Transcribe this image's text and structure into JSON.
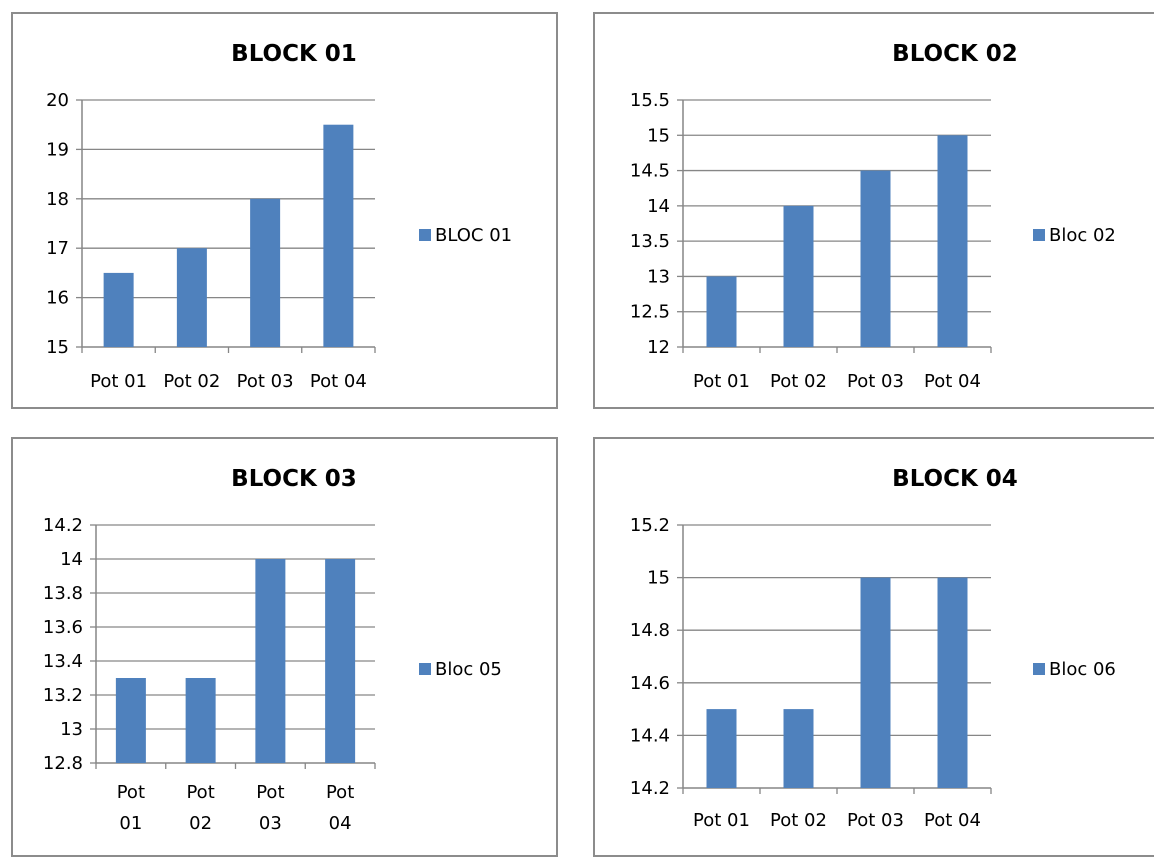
{
  "colors": {
    "bar": "#4f81bd",
    "grid": "#868686",
    "axis": "#868686",
    "border": "#8c8c8c"
  },
  "chart_data": [
    {
      "type": "bar",
      "title": "BLOCK 01",
      "categories": [
        "Pot 01",
        "Pot 02",
        "Pot 03",
        "Pot 04"
      ],
      "series": [
        {
          "name": "BLOC 01",
          "values": [
            16.5,
            17,
            18,
            19.5
          ]
        }
      ],
      "ylim": [
        15,
        20
      ],
      "yticks": [
        "15",
        "16",
        "17",
        "18",
        "19",
        "20"
      ],
      "grid": true,
      "legend": "right"
    },
    {
      "type": "bar",
      "title": "BLOCK 02",
      "categories": [
        "Pot 01",
        "Pot 02",
        "Pot 03",
        "Pot 04"
      ],
      "series": [
        {
          "name": "Bloc 02",
          "values": [
            13,
            14,
            14.5,
            15
          ]
        }
      ],
      "ylim": [
        12,
        15.5
      ],
      "yticks": [
        "12",
        "12.5",
        "13",
        "13.5",
        "14",
        "14.5",
        "15",
        "15.5"
      ],
      "grid": true,
      "legend": "right"
    },
    {
      "type": "bar",
      "title": "BLOCK 03",
      "categories": [
        "Pot 01",
        "Pot 02",
        "Pot 03",
        "Pot 04"
      ],
      "series": [
        {
          "name": "Bloc 05",
          "values": [
            13.3,
            13.3,
            14,
            14
          ]
        }
      ],
      "ylim": [
        12.8,
        14.2
      ],
      "yticks": [
        "12.8",
        "13",
        "13.2",
        "13.4",
        "13.6",
        "13.8",
        "14",
        "14.2"
      ],
      "grid": true,
      "legend": "right"
    },
    {
      "type": "bar",
      "title": "BLOCK 04",
      "categories": [
        "Pot 01",
        "Pot 02",
        "Pot 03",
        "Pot 04"
      ],
      "series": [
        {
          "name": "Bloc 06",
          "values": [
            14.5,
            14.5,
            15,
            15
          ]
        }
      ],
      "ylim": [
        14.2,
        15.2
      ],
      "yticks": [
        "14.2",
        "14.4",
        "14.6",
        "14.8",
        "15",
        "15.2"
      ],
      "grid": true,
      "legend": "right"
    }
  ]
}
